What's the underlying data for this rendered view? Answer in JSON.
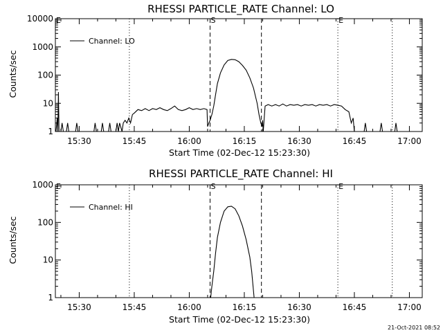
{
  "footer": {
    "timestamp": "21-Oct-2021 08:52"
  },
  "chart_data": [
    {
      "type": "line",
      "title": "RHESSI PARTICLE_RATE Channel: LO",
      "xlabel": "Start Time (02-Dec-12 15:23:30)",
      "ylabel": "Counts/sec",
      "yscale": "log",
      "ylim": [
        1,
        10000
      ],
      "xlim": [
        "15:23:30",
        "17:03:30"
      ],
      "x_ticks": [
        "15:30",
        "15:45",
        "16:00",
        "16:15",
        "16:30",
        "16:45",
        "17:00"
      ],
      "y_ticks": [
        "1",
        "10",
        "100",
        "1000",
        "10000"
      ],
      "legend": {
        "label": "Channel: LO",
        "position": "top-left"
      },
      "markers": [
        {
          "time": "15:23:30",
          "label": "E",
          "style": "dotted"
        },
        {
          "time": "15:43:40",
          "label": "",
          "style": "dotted"
        },
        {
          "time": "16:05:40",
          "label": "S",
          "style": "dashed"
        },
        {
          "time": "16:19:40",
          "label": "",
          "style": "dashed"
        },
        {
          "time": "16:40:30",
          "label": "E",
          "style": "dotted"
        },
        {
          "time": "16:55:20",
          "label": "",
          "style": "dotted"
        }
      ],
      "series": [
        {
          "name": "Channel: LO",
          "points": [
            [
              "15:23:40",
              1
            ],
            [
              "15:24:00",
              3
            ],
            [
              "15:24:10",
              1
            ],
            [
              "15:24:20",
              25
            ],
            [
              "15:24:30",
              1
            ],
            [
              "15:25:00",
              1
            ],
            [
              "15:25:20",
              2
            ],
            [
              "15:25:40",
              1
            ],
            [
              "15:26:30",
              1
            ],
            [
              "15:26:50",
              2
            ],
            [
              "15:27:10",
              1
            ],
            [
              "15:29:00",
              1
            ],
            [
              "15:29:20",
              2
            ],
            [
              "15:29:40",
              1
            ],
            [
              "15:34:00",
              1
            ],
            [
              "15:34:20",
              2
            ],
            [
              "15:34:40",
              1
            ],
            [
              "15:36:00",
              1
            ],
            [
              "15:36:20",
              2
            ],
            [
              "15:36:40",
              1
            ],
            [
              "15:38:00",
              1
            ],
            [
              "15:38:20",
              2
            ],
            [
              "15:38:40",
              1
            ],
            [
              "15:40:00",
              1
            ],
            [
              "15:40:20",
              2
            ],
            [
              "15:40:40",
              1
            ],
            [
              "15:41:00",
              2
            ],
            [
              "15:41:40",
              1
            ],
            [
              "15:42:00",
              2
            ],
            [
              "15:42:30",
              2.5
            ],
            [
              "15:43:00",
              2
            ],
            [
              "15:43:30",
              3
            ],
            [
              "15:44:00",
              2
            ],
            [
              "15:44:30",
              4
            ],
            [
              "15:45:00",
              4.5
            ],
            [
              "15:46:00",
              6
            ],
            [
              "15:47:00",
              5.5
            ],
            [
              "15:48:00",
              6.5
            ],
            [
              "15:49:00",
              5.5
            ],
            [
              "15:50:00",
              6.5
            ],
            [
              "15:51:00",
              6
            ],
            [
              "15:52:00",
              7
            ],
            [
              "15:53:00",
              6
            ],
            [
              "15:54:00",
              5.5
            ],
            [
              "15:55:00",
              6.5
            ],
            [
              "15:56:00",
              8
            ],
            [
              "15:57:00",
              6
            ],
            [
              "15:58:00",
              5.5
            ],
            [
              "15:59:00",
              6
            ],
            [
              "16:00:00",
              7
            ],
            [
              "16:01:00",
              6
            ],
            [
              "16:02:00",
              6.5
            ],
            [
              "16:03:00",
              6
            ],
            [
              "16:04:00",
              6.5
            ],
            [
              "16:04:50",
              6
            ],
            [
              "16:05:00",
              1.5
            ],
            [
              "16:05:20",
              2
            ],
            [
              "16:05:40",
              2.5
            ],
            [
              "16:06:10",
              4
            ],
            [
              "16:06:40",
              8
            ],
            [
              "16:07:10",
              20
            ],
            [
              "16:07:40",
              50
            ],
            [
              "16:08:30",
              120
            ],
            [
              "16:09:30",
              230
            ],
            [
              "16:10:30",
              330
            ],
            [
              "16:11:30",
              360
            ],
            [
              "16:12:30",
              350
            ],
            [
              "16:13:30",
              300
            ],
            [
              "16:14:30",
              220
            ],
            [
              "16:15:30",
              150
            ],
            [
              "16:16:30",
              80
            ],
            [
              "16:17:30",
              35
            ],
            [
              "16:18:30",
              10
            ],
            [
              "16:19:00",
              4
            ],
            [
              "16:19:30",
              2
            ],
            [
              "16:19:50",
              1.5
            ],
            [
              "16:20:00",
              2.5
            ],
            [
              "16:20:10",
              1
            ],
            [
              "16:20:40",
              8
            ],
            [
              "16:21:30",
              9
            ],
            [
              "16:22:30",
              8
            ],
            [
              "16:23:30",
              9
            ],
            [
              "16:24:30",
              8
            ],
            [
              "16:25:30",
              9.5
            ],
            [
              "16:26:30",
              8
            ],
            [
              "16:27:30",
              9
            ],
            [
              "16:28:30",
              8.5
            ],
            [
              "16:29:30",
              9
            ],
            [
              "16:30:30",
              8
            ],
            [
              "16:31:30",
              9
            ],
            [
              "16:32:30",
              8.5
            ],
            [
              "16:33:30",
              9
            ],
            [
              "16:34:30",
              8
            ],
            [
              "16:35:30",
              9
            ],
            [
              "16:36:30",
              8.5
            ],
            [
              "16:37:30",
              9
            ],
            [
              "16:38:30",
              8
            ],
            [
              "16:39:30",
              9
            ],
            [
              "16:40:30",
              8.5
            ],
            [
              "16:41:30",
              8
            ],
            [
              "16:42:30",
              6
            ],
            [
              "16:43:30",
              5
            ],
            [
              "16:44:10",
              2
            ],
            [
              "16:44:40",
              3
            ],
            [
              "16:45:00",
              1
            ],
            [
              "16:47:40",
              1
            ],
            [
              "16:48:00",
              2
            ],
            [
              "16:48:20",
              1
            ],
            [
              "16:52:00",
              1
            ],
            [
              "16:52:20",
              2
            ],
            [
              "16:52:40",
              1
            ],
            [
              "16:56:00",
              1
            ],
            [
              "16:56:20",
              2
            ],
            [
              "16:56:40",
              1
            ]
          ]
        }
      ]
    },
    {
      "type": "line",
      "title": "RHESSI PARTICLE_RATE Channel: HI",
      "xlabel": "Start Time (02-Dec-12 15:23:30)",
      "ylabel": "Counts/sec",
      "yscale": "log",
      "ylim": [
        1,
        1000
      ],
      "xlim": [
        "15:23:30",
        "17:03:30"
      ],
      "x_ticks": [
        "15:30",
        "15:45",
        "16:00",
        "16:15",
        "16:30",
        "16:45",
        "17:00"
      ],
      "y_ticks": [
        "1",
        "10",
        "100",
        "1000"
      ],
      "legend": {
        "label": "Channel: HI",
        "position": "top-left"
      },
      "markers": [
        {
          "time": "15:23:30",
          "label": "E",
          "style": "dotted"
        },
        {
          "time": "15:43:40",
          "label": "",
          "style": "dotted"
        },
        {
          "time": "16:05:40",
          "label": "S",
          "style": "dashed"
        },
        {
          "time": "16:19:40",
          "label": "",
          "style": "dashed"
        },
        {
          "time": "16:40:30",
          "label": "E",
          "style": "dotted"
        },
        {
          "time": "16:55:20",
          "label": "",
          "style": "dotted"
        }
      ],
      "series": [
        {
          "name": "Channel: HI",
          "points": [
            [
              "16:05:50",
              1
            ],
            [
              "16:06:10",
              2
            ],
            [
              "16:06:40",
              5
            ],
            [
              "16:07:10",
              15
            ],
            [
              "16:07:40",
              40
            ],
            [
              "16:08:30",
              100
            ],
            [
              "16:09:30",
              200
            ],
            [
              "16:10:30",
              260
            ],
            [
              "16:11:30",
              270
            ],
            [
              "16:12:30",
              230
            ],
            [
              "16:13:30",
              150
            ],
            [
              "16:14:30",
              80
            ],
            [
              "16:15:30",
              35
            ],
            [
              "16:16:30",
              12
            ],
            [
              "16:17:00",
              5
            ],
            [
              "16:17:40",
              1
            ]
          ]
        }
      ]
    }
  ]
}
